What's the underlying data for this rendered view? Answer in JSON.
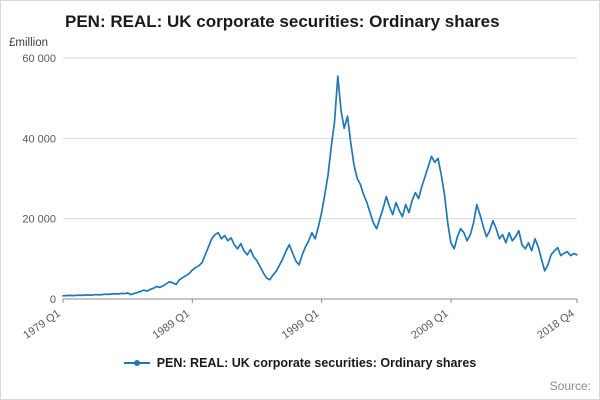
{
  "title": "PEN: REAL: UK corporate securities: Ordinary shares",
  "source_label": "Source:",
  "legend": {
    "label": "PEN: REAL: UK corporate securities: Ordinary shares",
    "color": "#1f77b4"
  },
  "chart_data": {
    "type": "line",
    "title": "PEN: REAL: UK corporate securities: Ordinary shares",
    "xlabel": "",
    "ylabel": "£million",
    "ylim": [
      0,
      60000
    ],
    "grid": "horizontal",
    "legend_position": "bottom-center",
    "frequency": "quarterly",
    "x_start": "1979 Q1",
    "x_end": "2018 Q4",
    "y_ticks": [
      0,
      20000,
      40000,
      60000
    ],
    "y_tick_labels": [
      "0",
      "20 000",
      "40 000",
      "60 000"
    ],
    "x_tick_labels": [
      "1979 Q1",
      "1989 Q1",
      "1999 Q1",
      "2009 Q1",
      "2018 Q4"
    ],
    "x_tick_indices": [
      0,
      40,
      80,
      120,
      159
    ],
    "series": [
      {
        "name": "PEN: REAL: UK corporate securities: Ordinary shares",
        "color": "#1f77b4",
        "values": [
          800,
          850,
          900,
          850,
          900,
          950,
          900,
          1000,
          1000,
          950,
          1100,
          1050,
          1100,
          1200,
          1150,
          1250,
          1300,
          1250,
          1400,
          1350,
          1500,
          1100,
          1400,
          1600,
          1900,
          2200,
          2000,
          2400,
          2700,
          3100,
          2900,
          3300,
          3800,
          4300,
          4000,
          3600,
          4800,
          5300,
          5800,
          6300,
          7200,
          7800,
          8300,
          9000,
          11000,
          13000,
          15000,
          16000,
          16500,
          15000,
          15800,
          14500,
          15200,
          13500,
          12500,
          13800,
          12000,
          11000,
          12300,
          10500,
          9500,
          8000,
          6500,
          5200,
          4800,
          6000,
          7000,
          8500,
          10000,
          12000,
          13500,
          11500,
          9500,
          8500,
          11000,
          13000,
          14500,
          16500,
          15000,
          18000,
          21500,
          26000,
          31000,
          38000,
          44000,
          55500,
          47000,
          42500,
          45500,
          39000,
          33500,
          30000,
          28500,
          26000,
          24000,
          21500,
          19000,
          17500,
          20000,
          22500,
          25500,
          23000,
          21000,
          24000,
          22000,
          20500,
          23500,
          21500,
          24500,
          26500,
          25000,
          28000,
          30500,
          33000,
          35500,
          34000,
          35000,
          31000,
          26000,
          19000,
          14000,
          12500,
          15500,
          17500,
          16500,
          14500,
          16000,
          19000,
          23500,
          21000,
          18000,
          15500,
          17000,
          19500,
          17500,
          15000,
          16000,
          14000,
          16500,
          14500,
          15500,
          17000,
          13500,
          12500,
          14000,
          12000,
          15000,
          13000,
          10000,
          7000,
          8500,
          11000,
          12000,
          12800,
          10800,
          11400,
          11800,
          10800,
          11300,
          11000
        ]
      }
    ]
  }
}
